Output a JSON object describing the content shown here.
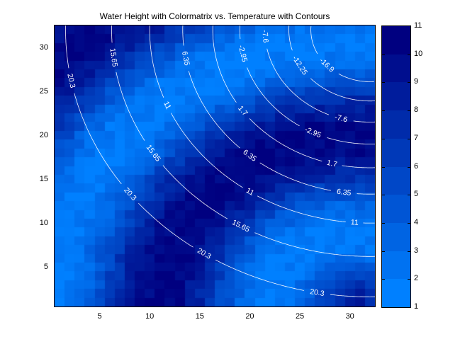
{
  "figure": {
    "title": "Water Height with Colormatrix vs. Temperature with Contours"
  },
  "axes": {
    "x_ticks": [
      5,
      10,
      15,
      20,
      25,
      30
    ],
    "y_ticks": [
      5,
      10,
      15,
      20,
      25,
      30
    ],
    "x_range": [
      0.5,
      32.5
    ],
    "y_range": [
      0.5,
      32.5
    ]
  },
  "colorbar": {
    "tick_labels": [
      1,
      2,
      3,
      4,
      5,
      6,
      7,
      8,
      9,
      10,
      11
    ],
    "bands": 10,
    "min_color_hex": "#0080FF",
    "max_color_hex": "#000080"
  },
  "chart_data": {
    "type": "heatmap",
    "title": "Water Height with Colormatrix vs. Temperature with Contours",
    "xlabel": "",
    "ylabel": "",
    "grid_size": [
      32,
      32
    ],
    "legend_position": "right-colorbar",
    "water_height": {
      "description": "32x32 water-height matrix shown as blue color cells; values run 1 (bright blue #0080FF) to 11 (dark navy #000080). Bright ripple bands radiate from near the bottom-right corner; dark navy in top-left corner, central diagonal band and lower-left region; blocky per-cell noise.",
      "value_min": 1,
      "value_max": 11,
      "ripple_source": [
        30.5,
        0.5
      ],
      "base_level": 6,
      "amplitude": 4.8,
      "wavelength": 21.5,
      "phase_radius": 8.5,
      "noise_amplitude": 1.0
    },
    "temperature_contours": {
      "line_color": "#FFFFFF",
      "label_color": "#FFFFFF",
      "center": [
        32,
        32
      ],
      "levels": [
        {
          "value": 20.3,
          "label": "20.3",
          "radius": 30.4,
          "label_angles": [
            11,
            38,
            57,
            80
          ]
        },
        {
          "value": 15.65,
          "label": "15.65",
          "radius": 25.8,
          "label_angles": [
            7,
            33,
            60
          ]
        },
        {
          "value": 11,
          "label": "11",
          "radius": 22.0,
          "label_angles": [
            23,
            57,
            86
          ]
        },
        {
          "value": 6.35,
          "label": "6.35",
          "radius": 18.7,
          "label_angles": [
            10,
            50,
            82
          ]
        },
        {
          "value": 1.7,
          "label": "1.7",
          "radius": 15.7,
          "label_angles": [
            36,
            76
          ]
        },
        {
          "value": -2.95,
          "label": "-2.95",
          "radius": 13.0,
          "label_angles": [
            12,
            64
          ]
        },
        {
          "value": -7.6,
          "label": "-7.6",
          "radius": 10.5,
          "label_angles": [
            4,
            74
          ]
        },
        {
          "value": -12.25,
          "label": "-12.25",
          "radius": 8.1,
          "label_angles": [
            30
          ]
        },
        {
          "value": -16.9,
          "label": "-16.9",
          "radius": 5.9,
          "label_angles": [
            43
          ]
        }
      ]
    }
  }
}
